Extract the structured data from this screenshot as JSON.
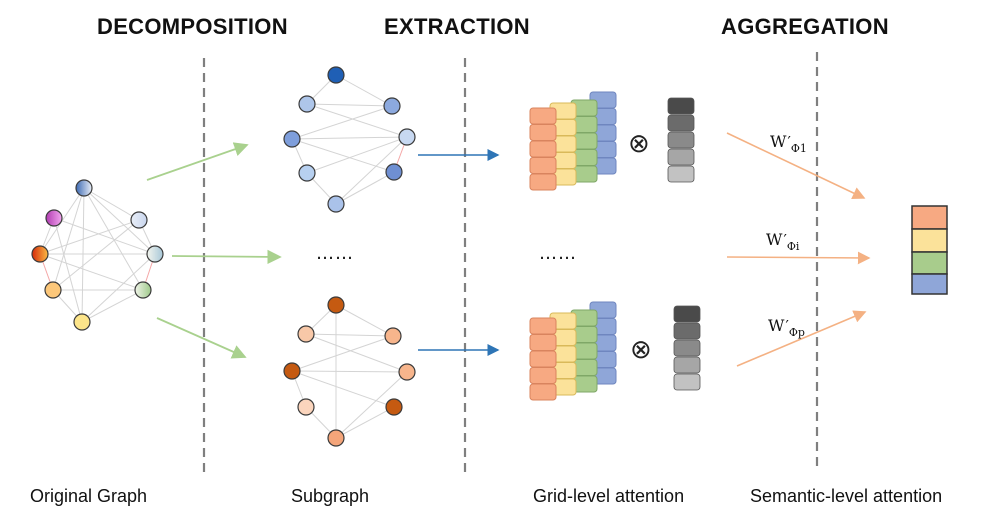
{
  "phases": {
    "decomposition": "DECOMPOSITION",
    "extraction": "EXTRACTION",
    "aggregation": "AGGREGATION"
  },
  "captions": {
    "original": "Original Graph",
    "subgraph": "Subgraph",
    "grid": "Grid-level attention",
    "semantic": "Semantic-level attention"
  },
  "ellipsis": "……",
  "operator": "⊗",
  "weights": [
    {
      "base": "W",
      "prime": "′",
      "sub": "Φ1"
    },
    {
      "base": "W",
      "prime": "′",
      "sub": "Φi"
    },
    {
      "base": "W",
      "prime": "′",
      "sub": "Φp"
    }
  ],
  "colors": {
    "orange": "#f7a982",
    "yellow": "#fbe29a",
    "green": "#a8cc8c",
    "blue": "#8fa6d8",
    "green_arrow": "#a9d18e",
    "blue_arrow": "#2e75b6",
    "orange_arrow": "#f4b183",
    "divider": "#7f7f7f"
  }
}
